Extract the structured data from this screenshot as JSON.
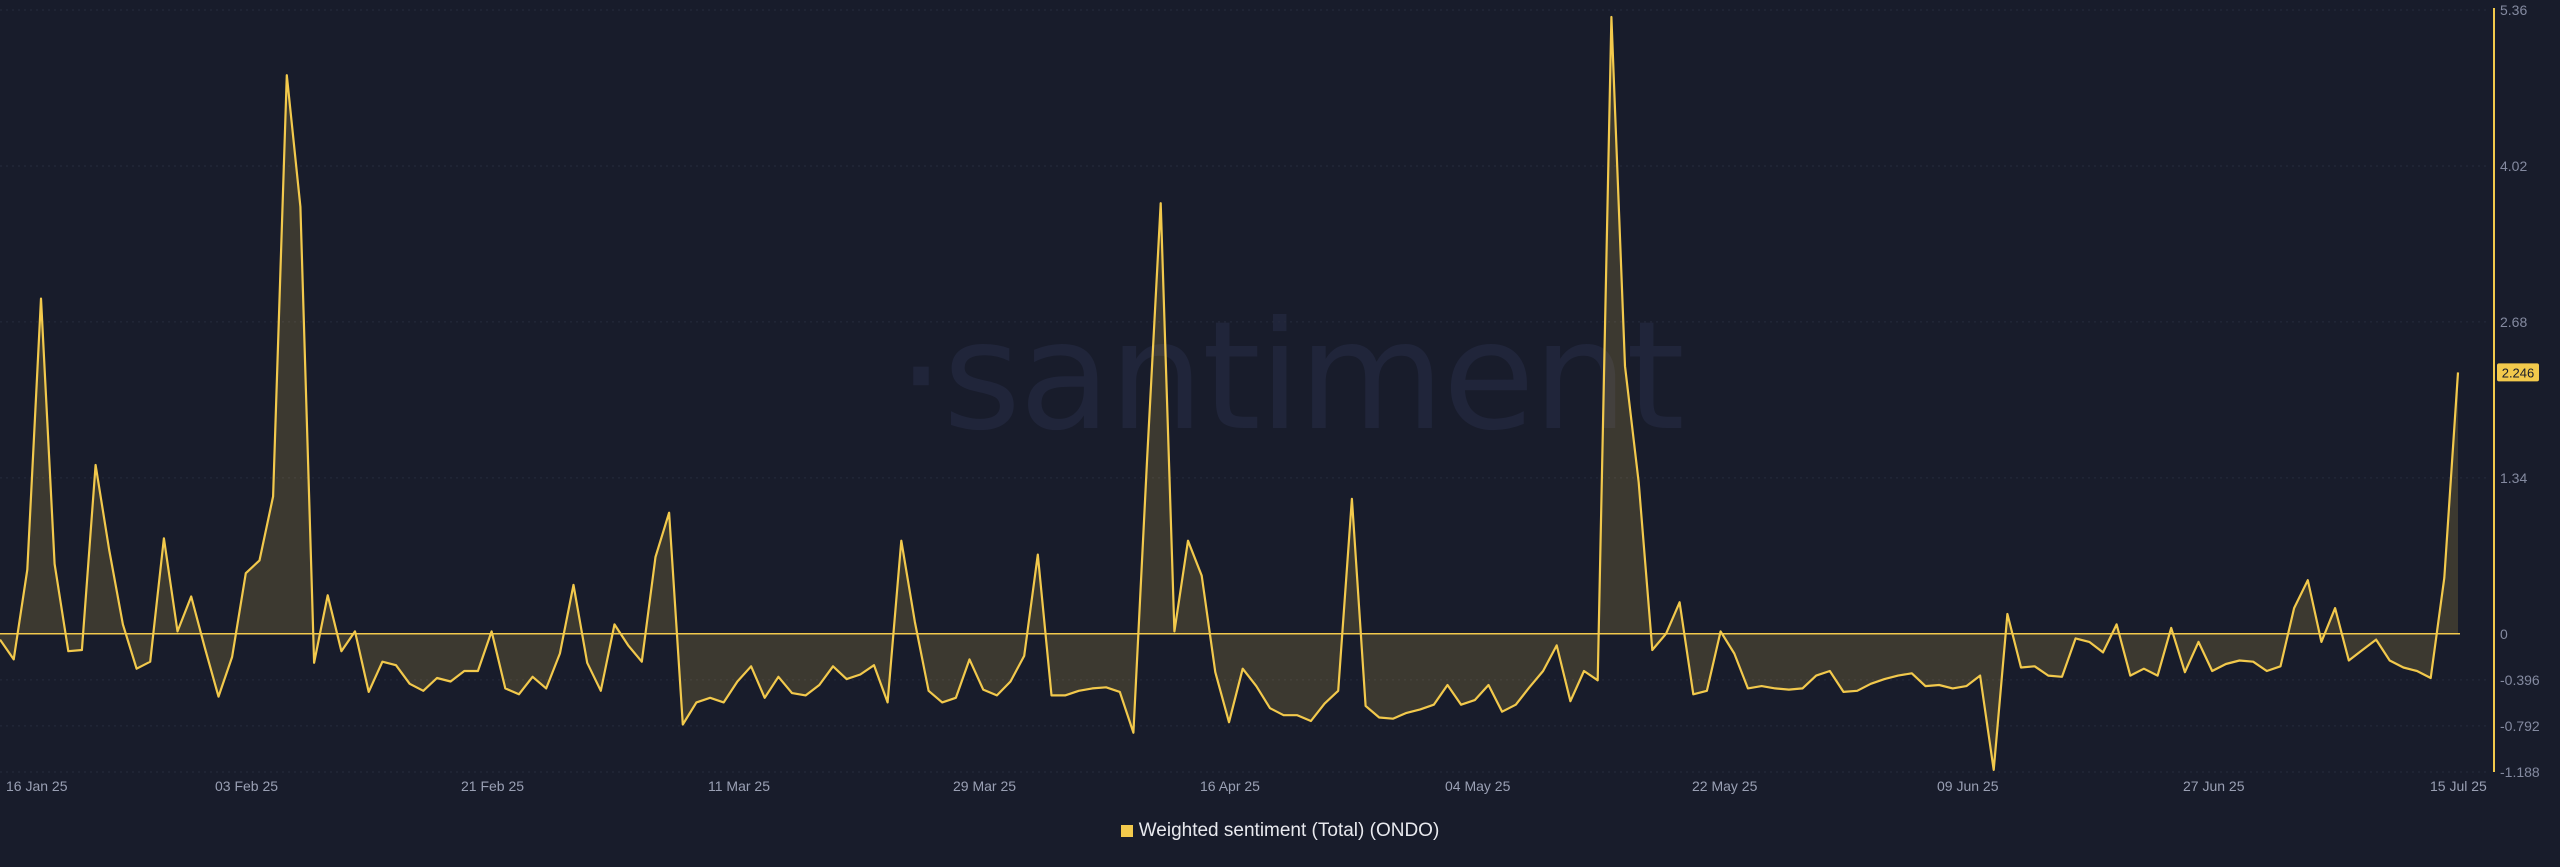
{
  "watermark": "·santiment",
  "colors": {
    "background": "#181c2b",
    "line": "#f2c94c",
    "fill": "#f2c94c",
    "grid": "#262b3d",
    "zero_line": "#f2c94c"
  },
  "legend": {
    "label": "Weighted sentiment (Total) (ONDO)",
    "position": "bottom-center"
  },
  "last_value_label": "2.246",
  "chart_data": {
    "type": "area",
    "series": [
      {
        "name": "Weighted sentiment (Total) (ONDO)",
        "start_date": "2025-01-15",
        "interval": "1 day",
        "end_date": "2025-07-15",
        "values": [
          -0.05,
          -0.22,
          0.55,
          2.88,
          0.6,
          -0.15,
          -0.14,
          1.45,
          0.72,
          0.08,
          -0.3,
          -0.24,
          0.82,
          0.02,
          0.32,
          -0.12,
          -0.54,
          -0.2,
          0.52,
          0.63,
          1.18,
          4.8,
          3.67,
          -0.25,
          0.33,
          -0.15,
          0.02,
          -0.5,
          -0.24,
          -0.27,
          -0.43,
          -0.49,
          -0.38,
          -0.41,
          -0.32,
          -0.32,
          0.02,
          -0.47,
          -0.52,
          -0.37,
          -0.47,
          -0.17,
          0.42,
          -0.25,
          -0.49,
          0.08,
          -0.1,
          -0.24,
          0.66,
          1.04,
          -0.78,
          -0.59,
          -0.55,
          -0.59,
          -0.41,
          -0.28,
          -0.55,
          -0.37,
          -0.51,
          -0.53,
          -0.44,
          -0.28,
          -0.39,
          -0.35,
          -0.27,
          -0.59,
          0.8,
          0.1,
          -0.49,
          -0.59,
          -0.55,
          -0.22,
          -0.48,
          -0.53,
          -0.41,
          -0.19,
          0.68,
          -0.53,
          -0.53,
          -0.49,
          -0.47,
          -0.46,
          -0.5,
          -0.85,
          1.5,
          3.7,
          0.02,
          0.8,
          0.5,
          -0.33,
          -0.76,
          -0.3,
          -0.45,
          -0.64,
          -0.7,
          -0.7,
          -0.75,
          -0.6,
          -0.49,
          1.16,
          -0.62,
          -0.72,
          -0.73,
          -0.68,
          -0.65,
          -0.61,
          -0.44,
          -0.61,
          -0.57,
          -0.44,
          -0.67,
          -0.61,
          -0.46,
          -0.32,
          -0.1,
          -0.58,
          -0.32,
          -0.4,
          5.3,
          2.3,
          1.3,
          -0.14,
          0.0,
          0.27,
          -0.52,
          -0.49,
          0.02,
          -0.17,
          -0.47,
          -0.45,
          -0.47,
          -0.48,
          -0.47,
          -0.36,
          -0.32,
          -0.5,
          -0.49,
          -0.43,
          -0.39,
          -0.36,
          -0.34,
          -0.45,
          -0.44,
          -0.47,
          -0.45,
          -0.36,
          -1.17,
          0.17,
          -0.29,
          -0.28,
          -0.36,
          -0.37,
          -0.04,
          -0.07,
          -0.16,
          0.08,
          -0.36,
          -0.3,
          -0.36,
          0.05,
          -0.33,
          -0.07,
          -0.32,
          -0.26,
          -0.23,
          -0.24,
          -0.32,
          -0.28,
          0.22,
          0.46,
          -0.07,
          0.22,
          -0.23,
          -0.14,
          -0.05,
          -0.23,
          -0.29,
          -0.32,
          -0.38,
          0.48,
          2.246
        ]
      }
    ],
    "x_tick_labels": [
      "16 Jan 25",
      "03 Feb 25",
      "21 Feb 25",
      "11 Mar 25",
      "29 Mar 25",
      "16 Apr 25",
      "04 May 25",
      "22 May 25",
      "09 Jun 25",
      "27 Jun 25",
      "15 Jul 25"
    ],
    "y_tick_labels": [
      "5.36",
      "4.02",
      "2.68",
      "1.34",
      "0",
      "-0.396",
      "-0.792",
      "-1.188"
    ],
    "y_ticks": [
      5.36,
      4.02,
      2.68,
      1.34,
      0,
      -0.396,
      -0.792,
      -1.188
    ],
    "ylim": [
      -1.188,
      5.36
    ],
    "yaxis_position": "right",
    "title": "",
    "xlabel": "",
    "ylabel": ""
  }
}
